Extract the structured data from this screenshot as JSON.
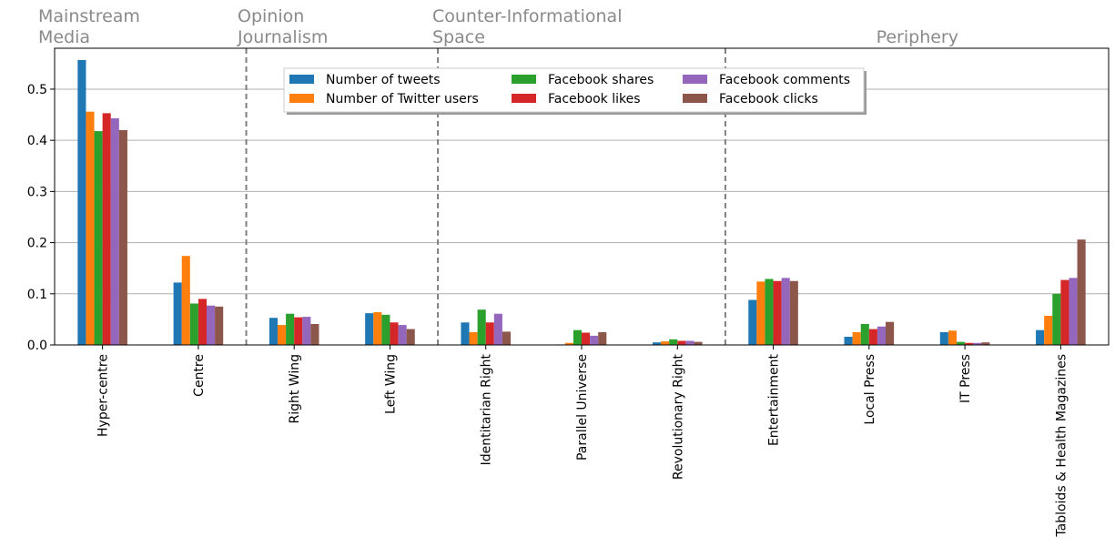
{
  "chart_data": {
    "type": "bar",
    "categories": [
      "Hyper-centre",
      "Centre",
      "Right Wing",
      "Left Wing",
      "Identitarian Right",
      "Parallel Universe",
      "Revolutionary Right",
      "Entertainment",
      "Local Press",
      "IT Press",
      "Tabloids & Health Magazines"
    ],
    "series": [
      {
        "name": "Number of tweets",
        "color": "#1f77b4",
        "values": [
          0.557,
          0.122,
          0.053,
          0.062,
          0.044,
          0.001,
          0.005,
          0.088,
          0.016,
          0.025,
          0.029
        ]
      },
      {
        "name": "Number of Twitter users",
        "color": "#ff7f0e",
        "values": [
          0.456,
          0.174,
          0.039,
          0.064,
          0.025,
          0.004,
          0.007,
          0.124,
          0.025,
          0.028,
          0.057
        ]
      },
      {
        "name": "Facebook shares",
        "color": "#2ca02c",
        "values": [
          0.418,
          0.081,
          0.061,
          0.059,
          0.069,
          0.029,
          0.011,
          0.129,
          0.041,
          0.006,
          0.1
        ]
      },
      {
        "name": "Facebook likes",
        "color": "#d62728",
        "values": [
          0.453,
          0.09,
          0.054,
          0.044,
          0.044,
          0.024,
          0.008,
          0.125,
          0.031,
          0.004,
          0.127
        ]
      },
      {
        "name": "Facebook comments",
        "color": "#9467bd",
        "values": [
          0.443,
          0.077,
          0.055,
          0.039,
          0.061,
          0.018,
          0.008,
          0.131,
          0.036,
          0.004,
          0.131
        ]
      },
      {
        "name": "Facebook clicks",
        "color": "#8c564b",
        "values": [
          0.42,
          0.075,
          0.041,
          0.031,
          0.026,
          0.025,
          0.006,
          0.125,
          0.045,
          0.005,
          0.206
        ]
      }
    ],
    "group_labels": [
      {
        "lines": [
          "Mainstream",
          "Media"
        ]
      },
      {
        "lines": [
          "Opinion",
          "Journalism"
        ]
      },
      {
        "lines": [
          "Counter-Informational",
          "Space"
        ]
      },
      {
        "lines": [
          "Periphery"
        ]
      }
    ],
    "group_dividers_after_category": [
      1,
      3,
      6
    ],
    "yticks": [
      "0.0",
      "0.1",
      "0.2",
      "0.3",
      "0.4",
      "0.5"
    ],
    "ytick_values": [
      0,
      0.1,
      0.2,
      0.3,
      0.4,
      0.5
    ],
    "ylim": [
      0,
      0.58
    ],
    "grid": "y",
    "legend": {
      "placement": "top-center",
      "columns": 3
    },
    "title": "",
    "xlabel": "",
    "ylabel": ""
  }
}
